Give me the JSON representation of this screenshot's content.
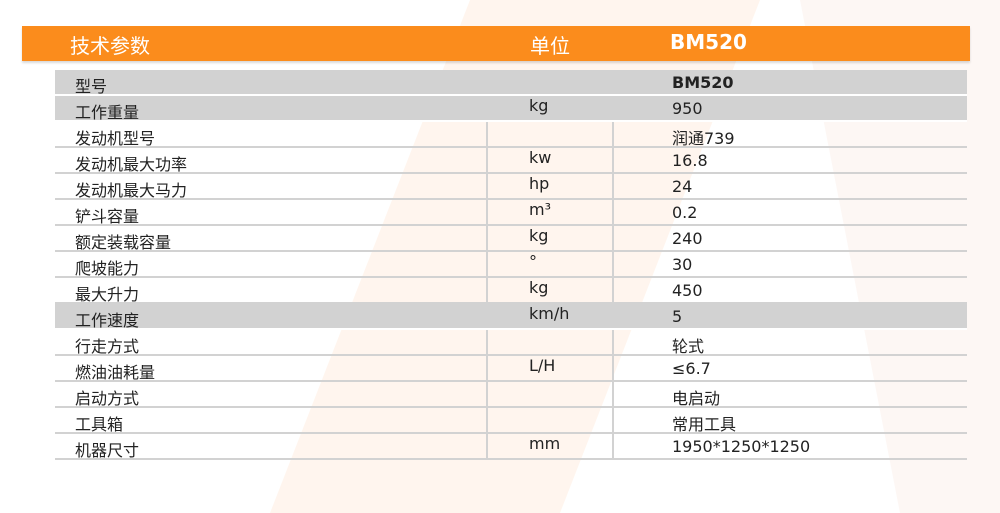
{
  "header": {
    "param": "技术参数",
    "unit": "单位",
    "model": "BM520"
  },
  "rows": [
    {
      "label": "型号",
      "unit": "",
      "value": "BM520",
      "gray": true
    },
    {
      "label": "工作重量",
      "unit": "kg",
      "value": "950",
      "gray": true
    },
    {
      "label": "发动机型号",
      "unit": "",
      "value": "润通739"
    },
    {
      "label": "发动机最大功率",
      "unit": "kw",
      "value": "16.8"
    },
    {
      "label": "发动机最大马力",
      "unit": "hp",
      "value": "24"
    },
    {
      "label": "铲斗容量",
      "unit": "m³",
      "value": "0.2"
    },
    {
      "label": "额定装载容量",
      "unit": "kg",
      "value": "240"
    },
    {
      "label": "爬坡能力",
      "unit": "°",
      "value": "30"
    },
    {
      "label": "最大升力",
      "unit": "kg",
      "value": "450"
    },
    {
      "label": "工作速度",
      "unit": "km/h",
      "value": "5",
      "gray": true
    },
    {
      "label": "行走方式",
      "unit": "",
      "value": "轮式"
    },
    {
      "label": "燃油油耗量",
      "unit": "L/H",
      "value": "≤6.7"
    },
    {
      "label": "启动方式",
      "unit": "",
      "value": "电启动"
    },
    {
      "label": "工具箱",
      "unit": "",
      "value": "常用工具"
    },
    {
      "label": "机器尺寸",
      "unit": "mm",
      "value": "1950*1250*1250"
    }
  ],
  "colors": {
    "accent": "#fb8c1c",
    "row_gray": "#d2d2d2"
  }
}
